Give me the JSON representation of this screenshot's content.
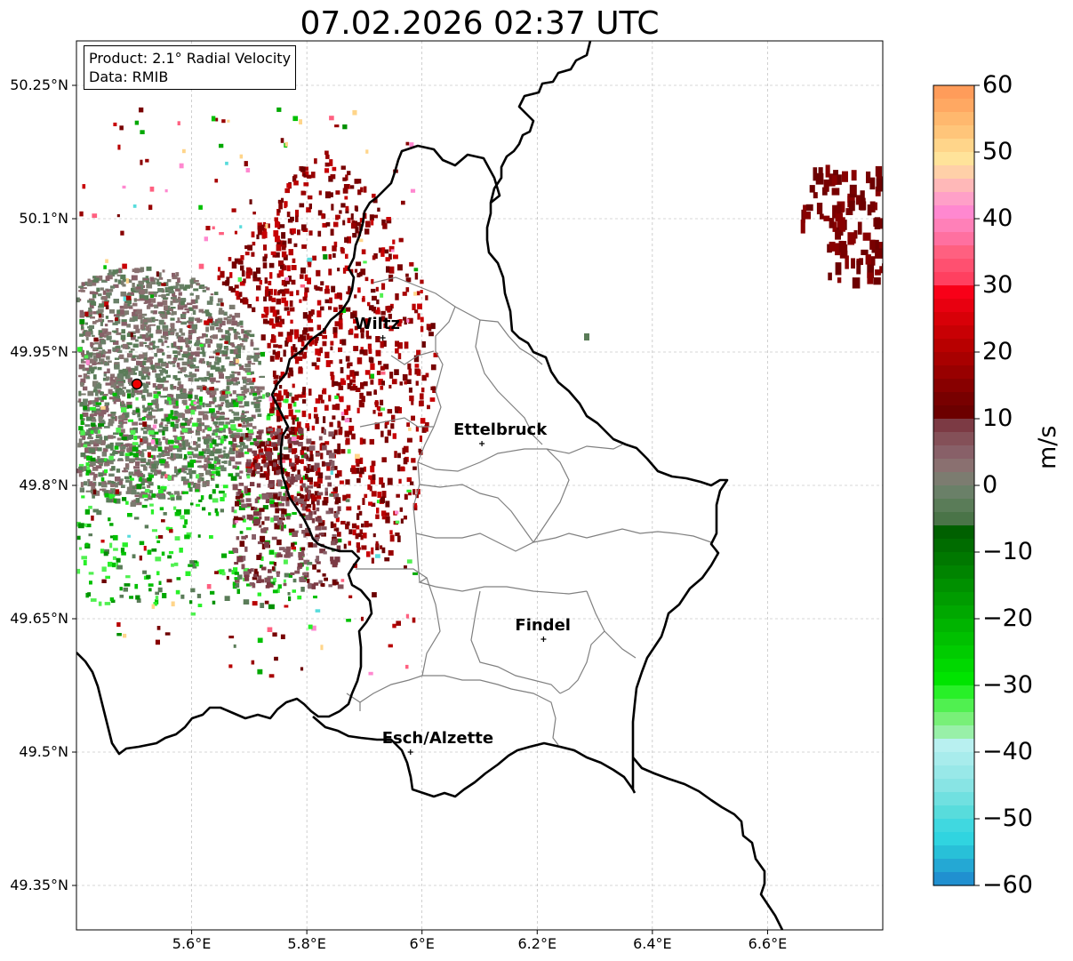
{
  "title": "07.02.2026 02:37 UTC",
  "infobox": {
    "product": "Product: 2.1° Radial Velocity",
    "data": "Data: RMIB"
  },
  "map": {
    "lon_range": [
      5.4,
      6.8
    ],
    "lat_range": [
      49.3,
      50.3
    ],
    "lat_ticks": [
      {
        "value": 50.25,
        "label": "50.25°N"
      },
      {
        "value": 50.1,
        "label": "50.1°N"
      },
      {
        "value": 49.95,
        "label": "49.95°N"
      },
      {
        "value": 49.8,
        "label": "49.8°N"
      },
      {
        "value": 49.65,
        "label": "49.65°N"
      },
      {
        "value": 49.5,
        "label": "49.5°N"
      },
      {
        "value": 49.35,
        "label": "49.35°N"
      }
    ],
    "lon_ticks": [
      {
        "value": 5.6,
        "label": "5.6°E"
      },
      {
        "value": 5.8,
        "label": "5.8°E"
      },
      {
        "value": 6.0,
        "label": "6°E"
      },
      {
        "value": 6.2,
        "label": "6.2°E"
      },
      {
        "value": 6.4,
        "label": "6.4°E"
      },
      {
        "value": 6.6,
        "label": "6.6°E"
      }
    ],
    "grid": true,
    "radar_site": {
      "lon": 5.505,
      "lat": 49.914
    },
    "cities": [
      {
        "name": "Wiltz",
        "lon": 5.932,
        "lat": 49.966
      },
      {
        "name": "Ettelbruck",
        "lon": 6.104,
        "lat": 49.847
      },
      {
        "name": "Findel",
        "lon": 6.211,
        "lat": 49.627
      },
      {
        "name": "Esch/Alzette",
        "lon": 5.98,
        "lat": 49.5
      }
    ]
  },
  "colorbar": {
    "unit": "m/s",
    "min": -60,
    "max": 60,
    "labels": [
      {
        "value": 60,
        "label": "60"
      },
      {
        "value": 50,
        "label": "50"
      },
      {
        "value": 40,
        "label": "40"
      },
      {
        "value": 30,
        "label": "30"
      },
      {
        "value": 20,
        "label": "20"
      },
      {
        "value": 10,
        "label": "10"
      },
      {
        "value": 0,
        "label": "0"
      },
      {
        "value": -10,
        "label": "−10"
      },
      {
        "value": -20,
        "label": "−20"
      },
      {
        "value": -30,
        "label": "−30"
      },
      {
        "value": -40,
        "label": "−40"
      },
      {
        "value": -50,
        "label": "−50"
      },
      {
        "value": -60,
        "label": "−60"
      }
    ],
    "colors_top_to_bottom": [
      "#ff9c5a",
      "#ffa862",
      "#ffb86e",
      "#ffc57a",
      "#ffd58a",
      "#ffe39a",
      "#ffd0a8",
      "#ffb8b8",
      "#ffa0c8",
      "#ff88d0",
      "#ff80b8",
      "#ff70a0",
      "#ff6080",
      "#ff5070",
      "#ff4060",
      "#f80018",
      "#e80010",
      "#d80008",
      "#c80004",
      "#b80000",
      "#a80000",
      "#980000",
      "#880000",
      "#780000",
      "#6c0000",
      "#7c3a44",
      "#845058",
      "#886068",
      "#8a7070",
      "#7c7c70",
      "#6a8068",
      "#5a7c58",
      "#4a7448",
      "#006000",
      "#006c00",
      "#007800",
      "#008400",
      "#009000",
      "#009c00",
      "#00a800",
      "#00b400",
      "#00c000",
      "#00cc00",
      "#00d800",
      "#00e400",
      "#28f028",
      "#50f050",
      "#78f078",
      "#98f0a8",
      "#b8f0f0",
      "#a8ecec",
      "#98e8e8",
      "#88e4e4",
      "#70e0e0",
      "#58dcdc",
      "#40d8e0",
      "#30d4e0",
      "#28c0d8",
      "#24a8d4",
      "#2090d0"
    ]
  }
}
